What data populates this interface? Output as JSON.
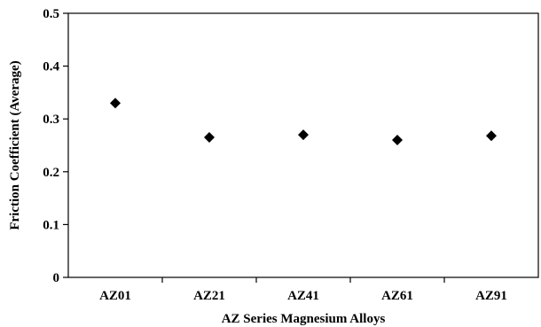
{
  "chart_data": {
    "type": "scatter",
    "title": "",
    "xlabel": "AZ Series Magnesium Alloys",
    "ylabel": "Friction Coefficient (Average)",
    "categories": [
      "AZ01",
      "AZ21",
      "AZ41",
      "AZ61",
      "AZ91"
    ],
    "series": [
      {
        "values": [
          0.33,
          0.265,
          0.27,
          0.26,
          0.268
        ]
      }
    ],
    "ylim": [
      0,
      0.5
    ],
    "yticks": [
      "0",
      "0.1",
      "0.2",
      "0.3",
      "0.4",
      "0.5"
    ],
    "marker": "diamond",
    "marker_color": "#000000",
    "grid": false,
    "legend": "none"
  }
}
